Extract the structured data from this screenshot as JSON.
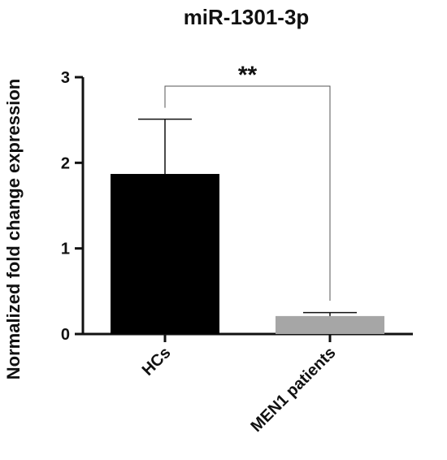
{
  "chart_data": {
    "type": "bar",
    "title": "miR-1301-3p",
    "ylabel": "Normalized fold change expression",
    "xlabel": "",
    "categories": [
      "HCs",
      "MEN1 patients"
    ],
    "values": [
      1.87,
      0.21
    ],
    "error_upper": [
      2.51,
      0.25
    ],
    "bar_colors": [
      "#000000",
      "#a6a6a6"
    ],
    "ylim": [
      0,
      3
    ],
    "yticks": [
      "0",
      "1",
      "2",
      "3"
    ],
    "grid": false,
    "annotation": {
      "text": "**",
      "between": [
        "HCs",
        "MEN1 patients"
      ]
    }
  }
}
